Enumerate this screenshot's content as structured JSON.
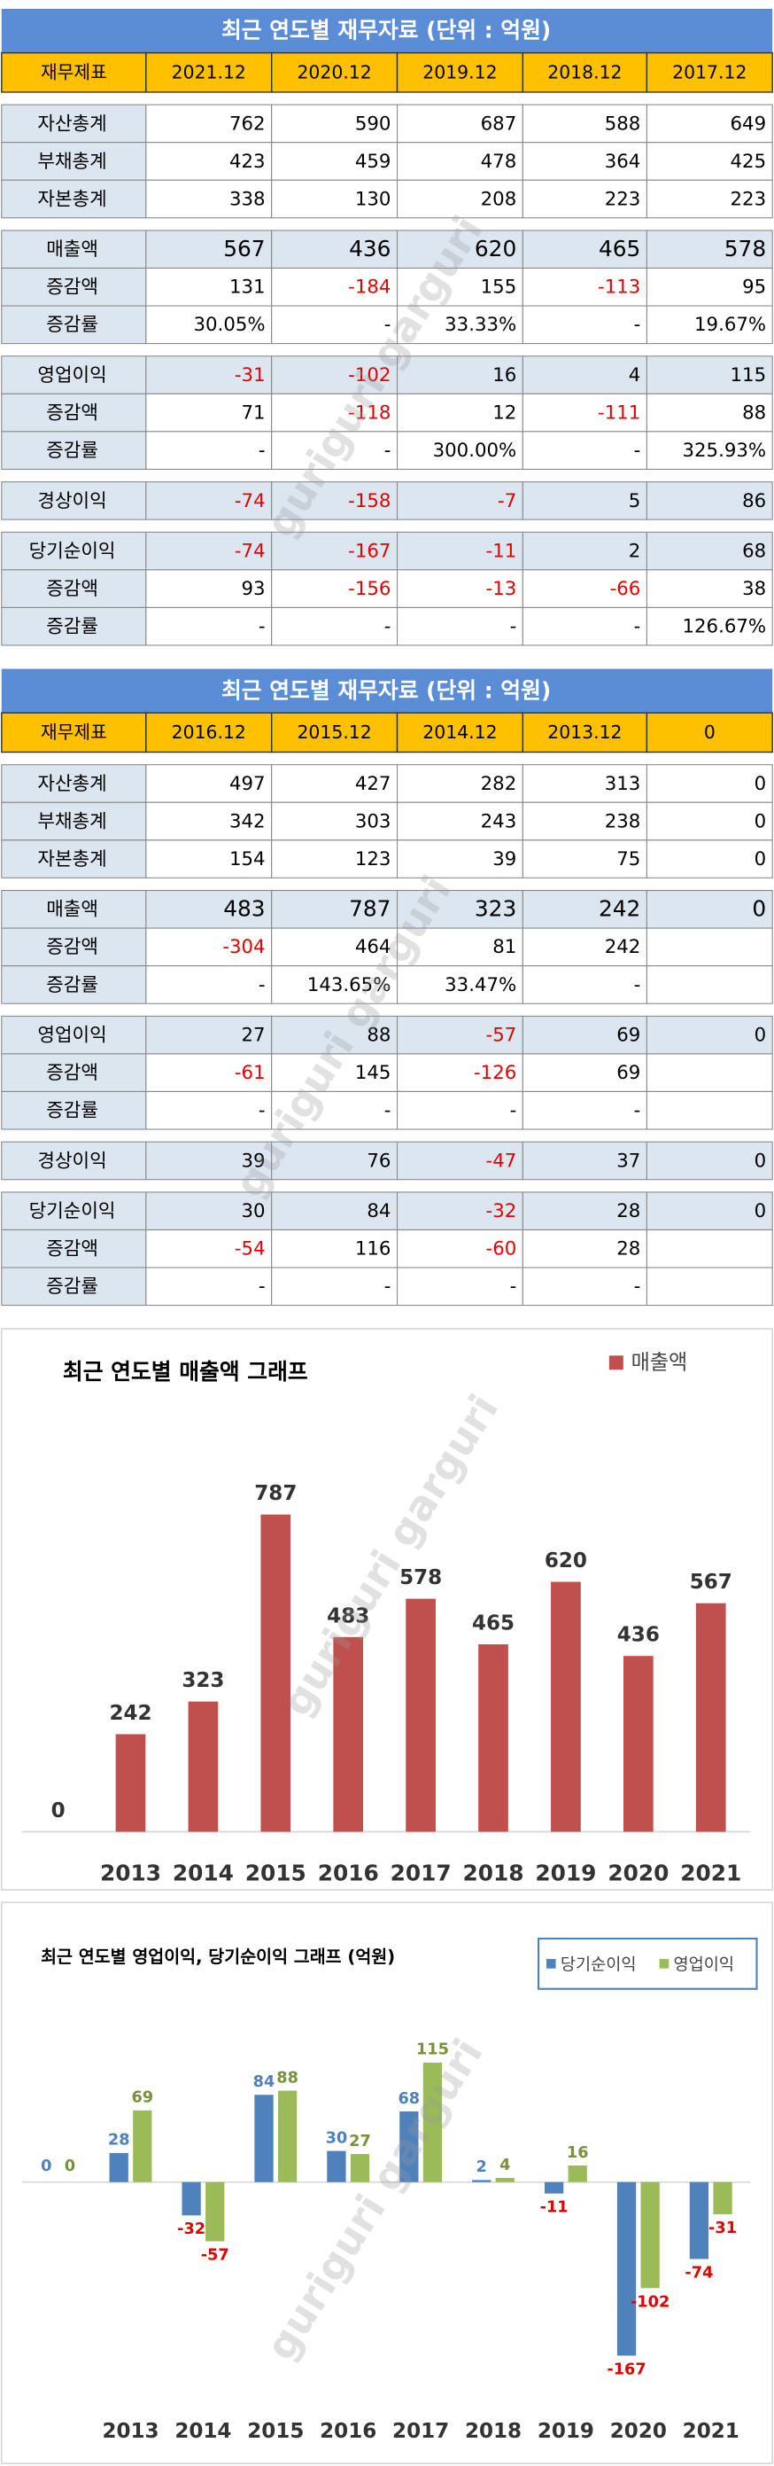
{
  "watermark": "guriguri garguri",
  "tables": [
    {
      "title": "최근 연도별 재무자료 (단위 : 억원)",
      "header": [
        "재무제표",
        "2021.12",
        "2020.12",
        "2019.12",
        "2018.12",
        "2017.12"
      ],
      "groups": [
        [
          [
            "자산총계",
            "762",
            "590",
            "687",
            "588",
            "649"
          ],
          [
            "부채총계",
            "423",
            "459",
            "478",
            "364",
            "425"
          ],
          [
            "자본총계",
            "338",
            "130",
            "208",
            "223",
            "223"
          ]
        ],
        [
          [
            "매출액",
            "567",
            "436",
            "620",
            "465",
            "578"
          ],
          [
            "증감액",
            "131",
            "-184",
            "155",
            "-113",
            "95"
          ],
          [
            "증감률",
            "30.05%",
            "-",
            "33.33%",
            "-",
            "19.67%"
          ]
        ],
        [
          [
            "영업이익",
            "-31",
            "-102",
            "16",
            "4",
            "115"
          ],
          [
            "증감액",
            "71",
            "-118",
            "12",
            "-111",
            "88"
          ],
          [
            "증감률",
            "-",
            "-",
            "300.00%",
            "-",
            "325.93%"
          ]
        ],
        [
          [
            "경상이익",
            "-74",
            "-158",
            "-7",
            "5",
            "86"
          ]
        ],
        [
          [
            "당기순이익",
            "-74",
            "-167",
            "-11",
            "2",
            "68"
          ],
          [
            "증감액",
            "93",
            "-156",
            "-13",
            "-66",
            "38"
          ],
          [
            "증감률",
            "-",
            "-",
            "-",
            "-",
            "126.67%"
          ]
        ]
      ]
    },
    {
      "title": "최근 연도별 재무자료 (단위 : 억원)",
      "header": [
        "재무제표",
        "2016.12",
        "2015.12",
        "2014.12",
        "2013.12",
        "0"
      ],
      "groups": [
        [
          [
            "자산총계",
            "497",
            "427",
            "282",
            "313",
            "0"
          ],
          [
            "부채총계",
            "342",
            "303",
            "243",
            "238",
            "0"
          ],
          [
            "자본총계",
            "154",
            "123",
            "39",
            "75",
            "0"
          ]
        ],
        [
          [
            "매출액",
            "483",
            "787",
            "323",
            "242",
            "0"
          ],
          [
            "증감액",
            "-304",
            "464",
            "81",
            "242",
            null
          ],
          [
            "증감률",
            "-",
            "143.65%",
            "33.47%",
            "-",
            null
          ]
        ],
        [
          [
            "영업이익",
            "27",
            "88",
            "-57",
            "69",
            "0"
          ],
          [
            "증감액",
            "-61",
            "145",
            "-126",
            "69",
            null
          ],
          [
            "증감률",
            "-",
            "-",
            "-",
            "-",
            null
          ]
        ],
        [
          [
            "경상이익",
            "39",
            "76",
            "-47",
            "37",
            "0"
          ]
        ],
        [
          [
            "당기순이익",
            "30",
            "84",
            "-32",
            "28",
            "0"
          ],
          [
            "증감액",
            "-54",
            "116",
            "-60",
            "28",
            null
          ],
          [
            "증감률",
            "-",
            "-",
            "-",
            "-",
            null
          ]
        ]
      ]
    }
  ],
  "chart_data": [
    {
      "type": "bar",
      "title": "최근 연도별 매출액 그래프",
      "categories": [
        null,
        "2013",
        "2014",
        "2015",
        "2016",
        "2017",
        "2018",
        "2019",
        "2020",
        "2021"
      ],
      "series": [
        {
          "name": "매출액",
          "color": "#c0504d",
          "values": [
            0,
            242,
            323,
            787,
            483,
            578,
            465,
            620,
            436,
            567
          ]
        }
      ],
      "ylim": [
        0,
        850
      ],
      "legend": "top-right"
    },
    {
      "type": "grouped-bar",
      "title": "최근 연도별 영업이익, 당기순이익 그래프 (억원)",
      "categories": [
        null,
        "2013",
        "2014",
        "2015",
        "2016",
        "2017",
        "2018",
        "2019",
        "2020",
        "2021"
      ],
      "series": [
        {
          "name": "당기순이익",
          "color": "#4f81bd",
          "values": [
            0,
            28,
            -32,
            84,
            30,
            68,
            2,
            -11,
            -167,
            -74
          ]
        },
        {
          "name": "영업이익",
          "color": "#9bbb59",
          "values": [
            0,
            69,
            -57,
            88,
            27,
            115,
            4,
            16,
            -102,
            -31
          ]
        }
      ],
      "ylim": [
        -180,
        130
      ],
      "legend": "top-right"
    }
  ]
}
